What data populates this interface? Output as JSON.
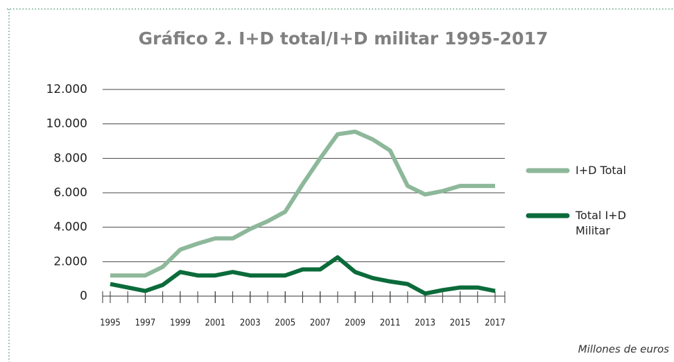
{
  "chart_data": {
    "type": "line",
    "title": "Gráfico 2. I+D total/I+D militar 1995-2017",
    "note": "Millones de euros",
    "x": [
      1995,
      1996,
      1997,
      1998,
      1999,
      2000,
      2001,
      2002,
      2003,
      2004,
      2005,
      2006,
      2007,
      2008,
      2009,
      2010,
      2011,
      2012,
      2013,
      2014,
      2015,
      2016,
      2017
    ],
    "xlim": [
      1995,
      2017
    ],
    "xticks": [
      1995,
      1997,
      1999,
      2001,
      2003,
      2005,
      2007,
      2009,
      2011,
      2013,
      2015,
      2017
    ],
    "ylim": [
      0,
      12000
    ],
    "yticks": [
      0,
      {
        "value": 2000,
        "label": "2.000"
      },
      {
        "value": 4000,
        "label": "4.000"
      },
      {
        "value": 6000,
        "label": "6.000"
      },
      {
        "value": 8000,
        "label": "8.000"
      },
      {
        "value": 10000,
        "label": "10.000"
      },
      {
        "value": 12000,
        "label": "12.000"
      }
    ],
    "grid": true,
    "series": [
      {
        "name": "I+D Total",
        "color": "#8db89a",
        "values": [
          1200,
          1200,
          1200,
          1700,
          2700,
          3050,
          3350,
          3350,
          3900,
          4350,
          4900,
          6500,
          8000,
          9400,
          9550,
          9100,
          8450,
          6400,
          5900,
          6100,
          6400,
          6400,
          6400
        ]
      },
      {
        "name": "Total I+D Militar",
        "color": "#0b6b3a",
        "values": [
          700,
          500,
          300,
          650,
          1400,
          1200,
          1200,
          1400,
          1200,
          1200,
          1200,
          1550,
          1550,
          2250,
          1400,
          1050,
          850,
          700,
          150,
          350,
          500,
          500,
          300
        ]
      }
    ]
  }
}
